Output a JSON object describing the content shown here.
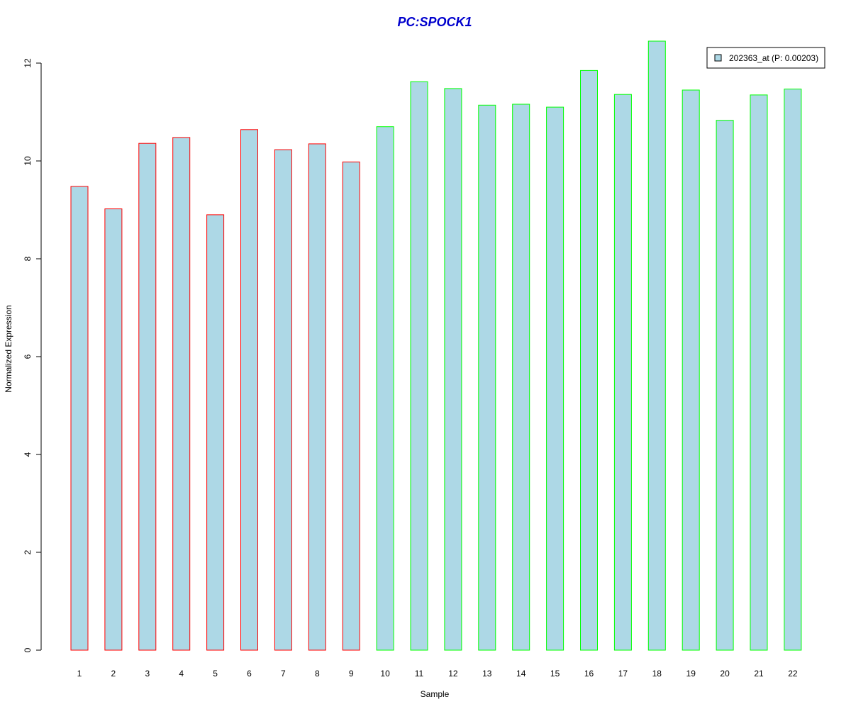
{
  "chart_data": {
    "type": "bar",
    "title": "PC:SPOCK1",
    "xlabel": "Sample",
    "ylabel": "Normalized Expression",
    "categories": [
      "1",
      "2",
      "3",
      "4",
      "5",
      "6",
      "7",
      "8",
      "9",
      "10",
      "11",
      "12",
      "13",
      "14",
      "15",
      "16",
      "17",
      "18",
      "19",
      "20",
      "21",
      "22"
    ],
    "series": [
      {
        "name": "202363_at (P: 0.00203)",
        "values": [
          9.48,
          9.02,
          10.36,
          10.48,
          8.9,
          10.64,
          10.23,
          10.35,
          9.98,
          10.7,
          11.62,
          11.48,
          11.14,
          11.16,
          11.1,
          11.85,
          11.36,
          12.45,
          11.45,
          10.83,
          11.35,
          11.47
        ]
      }
    ],
    "groups": [
      "red",
      "red",
      "red",
      "red",
      "red",
      "red",
      "red",
      "red",
      "red",
      "green",
      "green",
      "green",
      "green",
      "green",
      "green",
      "green",
      "green",
      "green",
      "green",
      "green",
      "green",
      "green"
    ],
    "ylim": [
      0,
      12.5
    ],
    "yticks": [
      "0",
      "2",
      "4",
      "6",
      "8",
      "10",
      "12"
    ],
    "grid": false,
    "legend_position": "top-right",
    "colors": {
      "title": "#0000cd",
      "bar_fill": "#add8e6",
      "red": "#ff0000",
      "green": "#00ff00",
      "axis": "#000000"
    }
  }
}
